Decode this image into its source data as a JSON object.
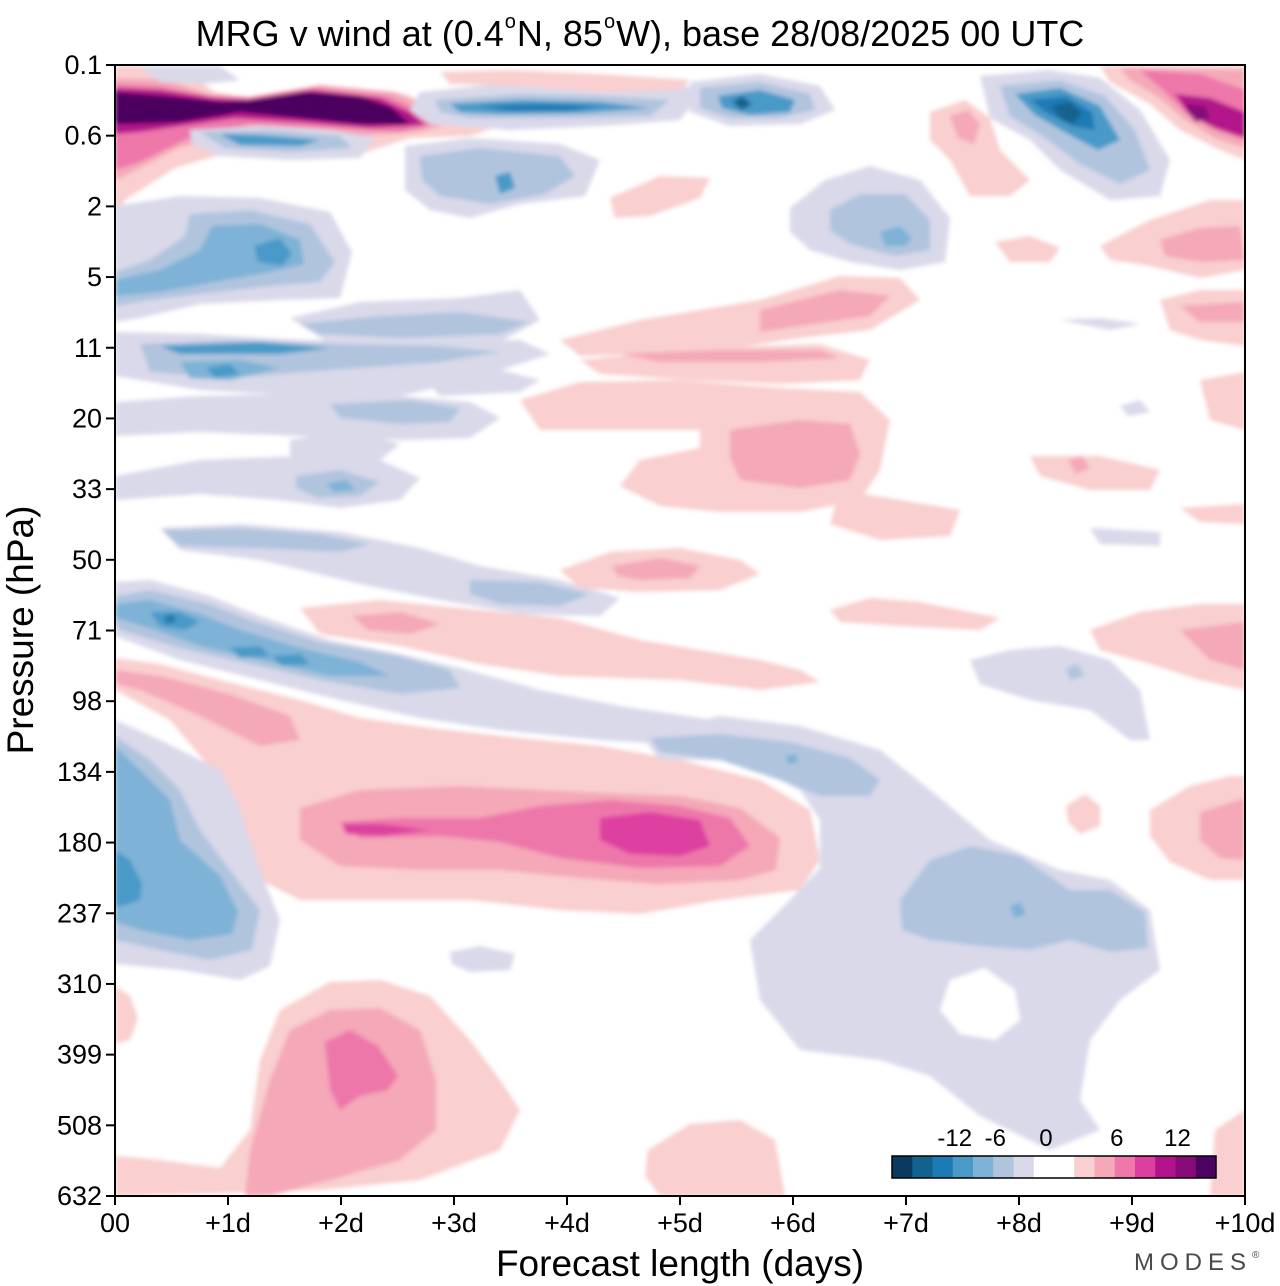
{
  "chart_data": {
    "type": "heatmap",
    "title": {
      "part1": "MRG v wind at (0.4",
      "deg1": "o",
      "part2": "N, 85",
      "deg2": "o",
      "part3": "W),  base 28/08/2025  00 UTC"
    },
    "xlabel": "Forecast length (days)",
    "ylabel": "Pressure (hPa)",
    "x_ticks": [
      "00",
      "+1d",
      "+2d",
      "+3d",
      "+4d",
      "+5d",
      "+6d",
      "+7d",
      "+8d",
      "+9d",
      "+10d"
    ],
    "x_range": [
      0,
      10
    ],
    "y_ticks": [
      "0.1",
      "0.6",
      "2",
      "5",
      "11",
      "20",
      "33",
      "50",
      "71",
      "98",
      "134",
      "180",
      "237",
      "310",
      "399",
      "508",
      "632"
    ],
    "y_range_hpa": [
      0.1,
      632
    ],
    "colorbar": {
      "labels": [
        "-12",
        "-6",
        "0",
        "6",
        "12"
      ],
      "levels": [
        -16,
        -14,
        -12,
        -10,
        -8,
        -6,
        -4,
        -2,
        2,
        4,
        6,
        8,
        10,
        12,
        14,
        16
      ],
      "colors": [
        "#0a3b5e",
        "#12628f",
        "#1c7ab4",
        "#4a9ac8",
        "#7eb2d6",
        "#b0c4de",
        "#d9d9ea",
        "#ffffff",
        "#ffffff",
        "#f9cfcf",
        "#f4a8b8",
        "#ee77aa",
        "#dd3fa0",
        "#b3128a",
        "#860a78",
        "#4c0260"
      ]
    },
    "features": [
      {
        "day": 1.5,
        "hpa": 0.3,
        "v": 16
      },
      {
        "day": 0.3,
        "hpa": 1.0,
        "v": 6
      },
      {
        "day": 1.0,
        "hpa": 0.8,
        "v": -8
      },
      {
        "day": 3.5,
        "hpa": 0.35,
        "v": -10
      },
      {
        "day": 5.5,
        "hpa": 0.3,
        "v": -12
      },
      {
        "day": 8.5,
        "hpa": 0.4,
        "v": -14
      },
      {
        "day": 9.7,
        "hpa": 0.45,
        "v": 14
      },
      {
        "day": 3.4,
        "hpa": 1.4,
        "v": -8
      },
      {
        "day": 1.5,
        "hpa": 3.5,
        "v": -10
      },
      {
        "day": 7.7,
        "hpa": 3.0,
        "v": -8
      },
      {
        "day": 1.5,
        "hpa": 11,
        "v": -10
      },
      {
        "day": 6.0,
        "hpa": 11,
        "v": 6
      },
      {
        "day": 6.5,
        "hpa": 22,
        "v": 4
      },
      {
        "day": 0.5,
        "hpa": 70,
        "v": -10
      },
      {
        "day": 1.5,
        "hpa": 85,
        "v": -10
      },
      {
        "day": 4.7,
        "hpa": 180,
        "v": 12
      },
      {
        "day": 2.3,
        "hpa": 180,
        "v": 10
      },
      {
        "day": 0.2,
        "hpa": 220,
        "v": -12
      },
      {
        "day": 8.0,
        "hpa": 237,
        "v": -8
      },
      {
        "day": 2.0,
        "hpa": 420,
        "v": 10
      },
      {
        "day": 7.5,
        "hpa": 400,
        "v": -4
      },
      {
        "day": 9.8,
        "hpa": 170,
        "v": 6
      },
      {
        "day": 9.7,
        "hpa": 80,
        "v": 6
      }
    ]
  },
  "watermark": {
    "text": "MODES",
    "mark": "®"
  }
}
